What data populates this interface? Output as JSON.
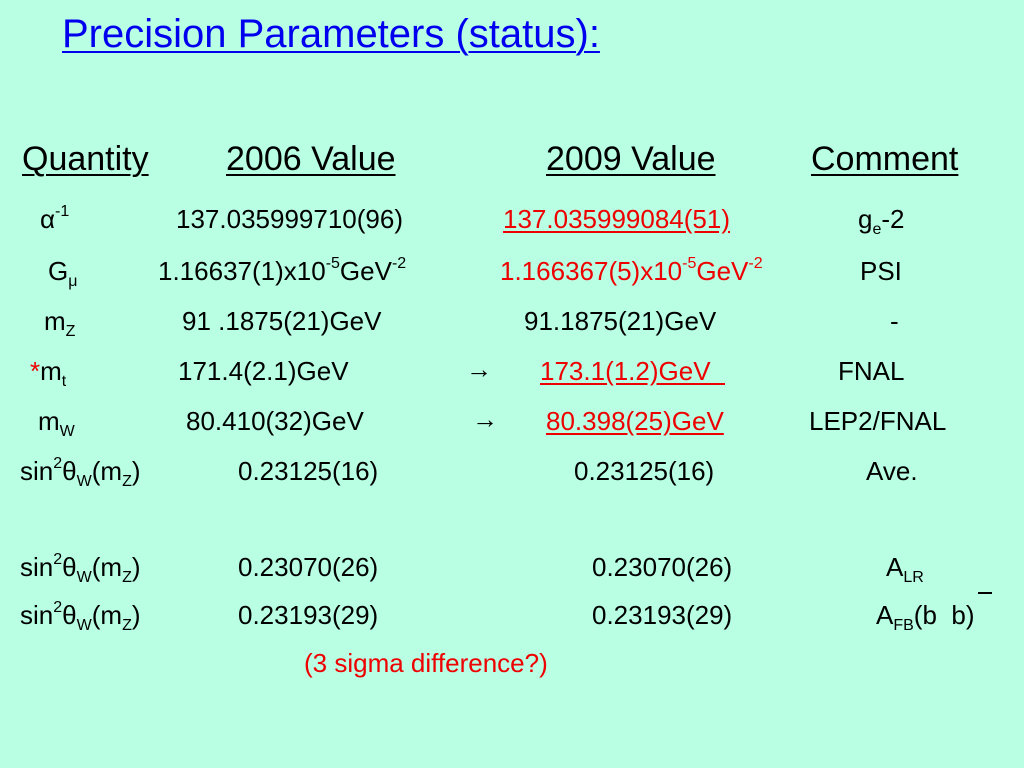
{
  "title": "Precision Parameters (status):",
  "headers": {
    "quantity": "Quantity",
    "v2006": "2006 Value",
    "v2009": "2009 Value",
    "comment": "Comment"
  },
  "rows": [
    {
      "q_main": "α",
      "q_sup": "-1",
      "q_sub": "",
      "v2006_main": "137.035999710(96)",
      "v2009_main": "137.035999084(51)",
      "comment_main": "g",
      "comment_sub": "e",
      "comment_tail": "-2"
    },
    {
      "q_main": "G",
      "q_sup": "",
      "q_sub": "μ",
      "v2006_main": "1.16637(1)x10",
      "v2006_sup1": "-5",
      "v2006_mid": "GeV",
      "v2006_sup2": "-2",
      "v2009_main": "1.166367(5)x10",
      "v2009_sup1": "-5",
      "v2009_mid": "GeV",
      "v2009_sup2": "-2",
      "comment_main": "PSI"
    },
    {
      "q_main": "m",
      "q_sub": "Z",
      "v2006_main": "91 .1875(21)GeV",
      "v2009_main": "91.1875(21)GeV",
      "comment_main": "-"
    },
    {
      "q_star": "*",
      "q_main": "m",
      "q_sub": "t",
      "v2006_main": "171.4(2.1)GeV",
      "arrow": "→",
      "v2009_main": "173.1(1.2)GeV  ",
      "comment_main": "FNAL"
    },
    {
      "q_main": "m",
      "q_sub": "W",
      "v2006_main": "80.410(32)GeV",
      "arrow": "→",
      "v2009_main": "80.398(25)GeV",
      "comment_main": "LEP2/FNAL"
    },
    {
      "q_a": "sin",
      "q_b": "2",
      "q_c": "θ",
      "q_d": "W",
      "q_e": "(m",
      "q_f": "Z",
      "q_g": ")",
      "v2006_main": "0.23125(16)",
      "v2009_main": "0.23125(16)",
      "comment_main": "Ave."
    },
    {
      "q_a": "sin",
      "q_b": "2",
      "q_c": "θ",
      "q_d": "W",
      "q_e": "(m",
      "q_f": "Z",
      "q_g": ")",
      "v2006_main": "0.23070(26)",
      "v2009_main": "0.23070(26)",
      "comment_main": "A",
      "comment_sub": "LR"
    },
    {
      "q_a": "sin",
      "q_b": "2",
      "q_c": "θ",
      "q_d": "W",
      "q_e": "(m",
      "q_f": "Z",
      "q_g": ")",
      "v2006_main": "0.23193(29)",
      "v2009_main": "0.23193(29)",
      "comment_main": "A",
      "comment_sub": "FB",
      "comment_tail": "(b  b)"
    }
  ],
  "note": "(3 sigma difference?)",
  "colors": {
    "background": "#b8ffe4",
    "title": "#0000ee",
    "highlight": "#ee0000"
  }
}
